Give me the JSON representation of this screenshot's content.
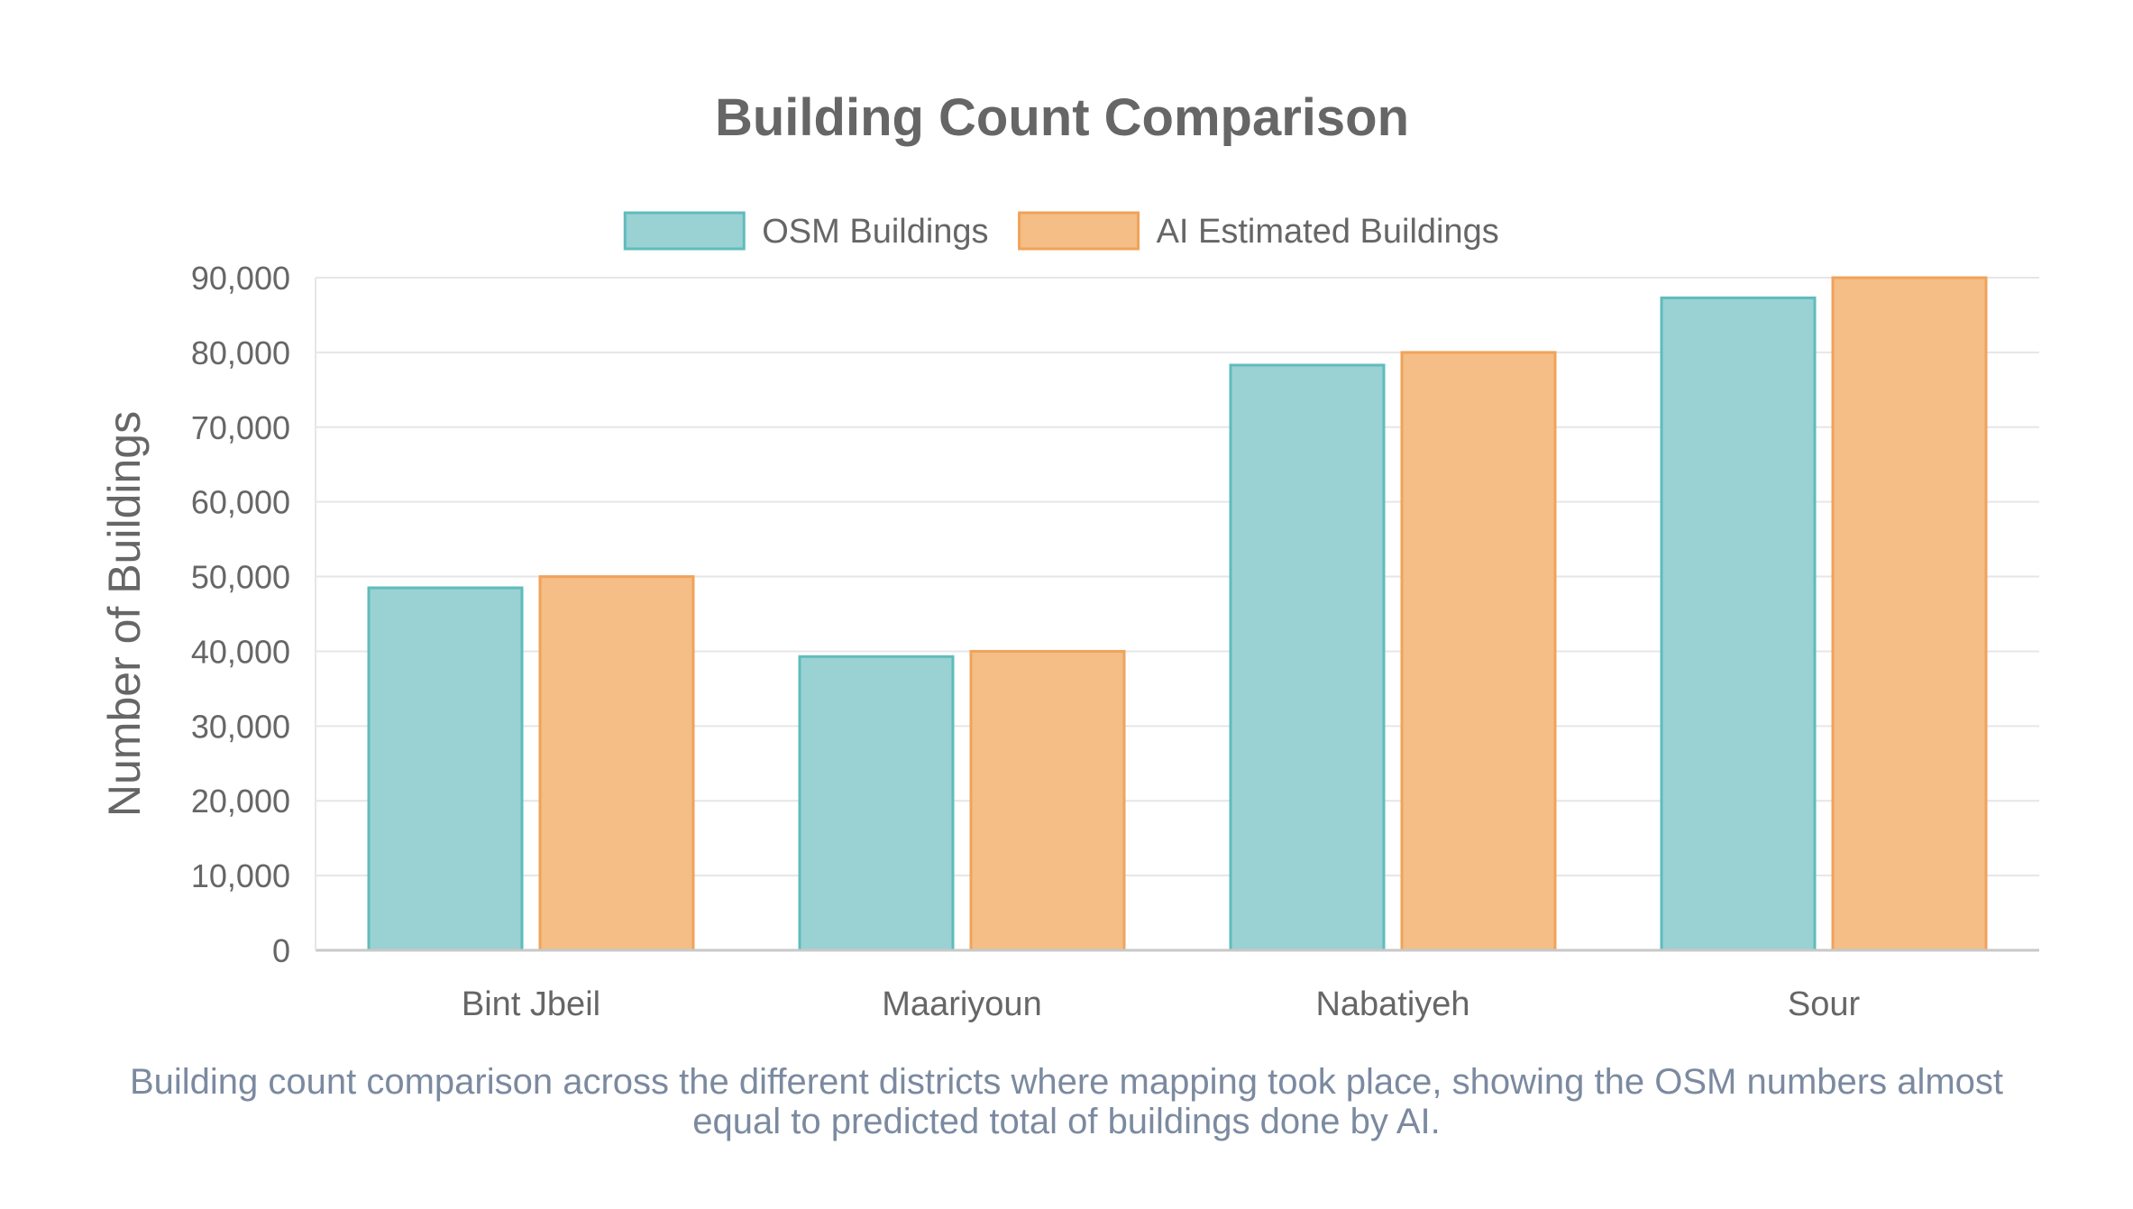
{
  "chart_data": {
    "type": "bar",
    "title": "Building Count Comparison",
    "xlabel": "",
    "ylabel": "Number of Buildings",
    "categories": [
      "Bint Jbeil",
      "Maariyoun",
      "Nabatiyeh",
      "Sour"
    ],
    "series": [
      {
        "name": "OSM Buildings",
        "values": [
          48500,
          39300,
          78300,
          87300
        ],
        "fill": "#9ad1d2",
        "stroke": "#5fbcbc"
      },
      {
        "name": "AI Estimated Buildings",
        "values": [
          50000,
          40000,
          80000,
          90000
        ],
        "fill": "#f4be86",
        "stroke": "#f0a35a"
      }
    ],
    "ylim": [
      0,
      90000
    ],
    "yticks": [
      0,
      10000,
      20000,
      30000,
      40000,
      50000,
      60000,
      70000,
      80000,
      90000
    ],
    "ytick_labels": [
      "0",
      "10,000",
      "20,000",
      "30,000",
      "40,000",
      "50,000",
      "60,000",
      "70,000",
      "80,000",
      "90,000"
    ],
    "grid": true,
    "legend_position": "top-center"
  },
  "caption": "Building count comparison across the different districts where mapping took place, showing the OSM numbers almost equal to predicted total of buildings done by AI.",
  "colors": {
    "grid": "#e6e6e6",
    "axis": "#c8c8c8",
    "text": "#666666",
    "caption": "#7b8aa0"
  }
}
